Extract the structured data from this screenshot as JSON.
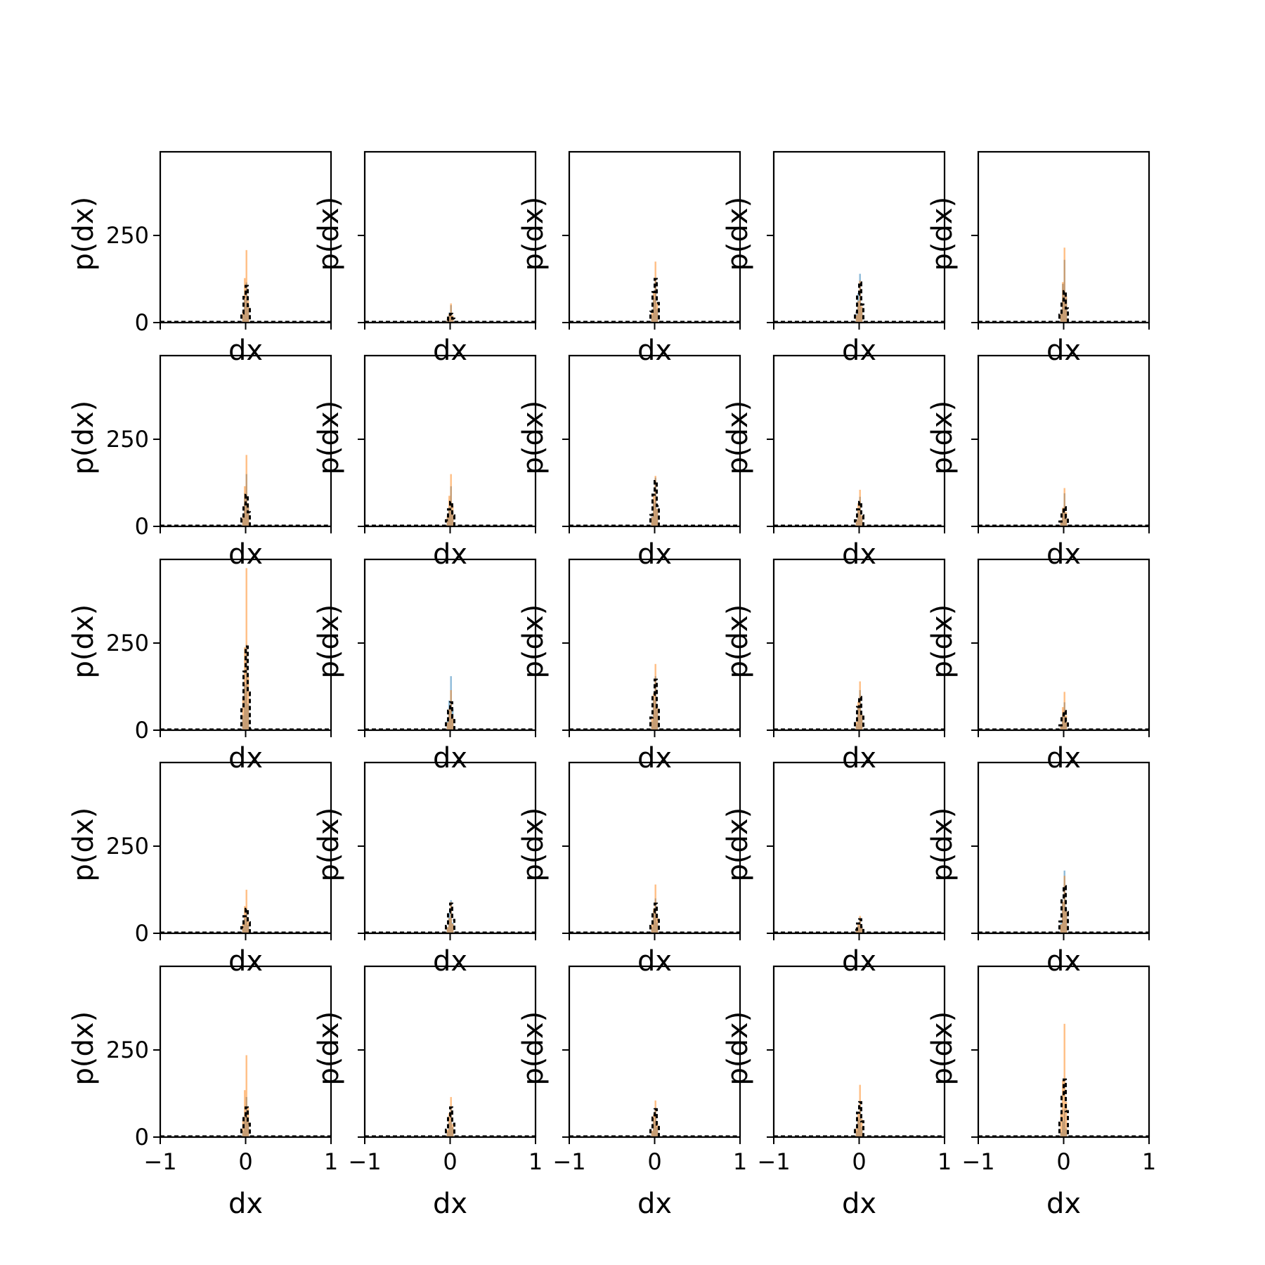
{
  "figure": {
    "rows": 5,
    "cols": 5,
    "colors": {
      "series_a": "#1f77b4",
      "series_b": "#ff7f0e",
      "line": "#000000"
    }
  },
  "chart_data": {
    "type": "bar",
    "layout": "grid-5x5",
    "xlabel": "dx",
    "ylabel": "p(dx)",
    "xlim": [
      -1,
      1
    ],
    "ylim": [
      0,
      490
    ],
    "x_ticks": [
      -1,
      0,
      1
    ],
    "x_tick_labels": [
      "−1",
      "0",
      "1"
    ],
    "y_ticks": [
      0,
      250
    ],
    "y_tick_labels": [
      "0",
      "250"
    ],
    "grid": false,
    "note_on_labels": "y tick labels shown only on first column; x tick labels shown only on bottom row",
    "panels": [
      {
        "row": 0,
        "col": 0,
        "blue_peak": 115,
        "orange_peak": 208,
        "black_peak": 105
      },
      {
        "row": 0,
        "col": 1,
        "blue_peak": 50,
        "orange_peak": 55,
        "black_peak": 25
      },
      {
        "row": 0,
        "col": 2,
        "blue_peak": 120,
        "orange_peak": 175,
        "black_peak": 125
      },
      {
        "row": 0,
        "col": 3,
        "blue_peak": 140,
        "orange_peak": 120,
        "black_peak": 115
      },
      {
        "row": 0,
        "col": 4,
        "blue_peak": 180,
        "orange_peak": 215,
        "black_peak": 90
      },
      {
        "row": 1,
        "col": 0,
        "blue_peak": 150,
        "orange_peak": 205,
        "black_peak": 90
      },
      {
        "row": 1,
        "col": 1,
        "blue_peak": 115,
        "orange_peak": 150,
        "black_peak": 70
      },
      {
        "row": 1,
        "col": 2,
        "blue_peak": 140,
        "orange_peak": 145,
        "black_peak": 130
      },
      {
        "row": 1,
        "col": 3,
        "blue_peak": 85,
        "orange_peak": 105,
        "black_peak": 70
      },
      {
        "row": 1,
        "col": 4,
        "blue_peak": 95,
        "orange_peak": 110,
        "black_peak": 55
      },
      {
        "row": 2,
        "col": 0,
        "blue_peak": 245,
        "orange_peak": 465,
        "black_peak": 240
      },
      {
        "row": 2,
        "col": 1,
        "blue_peak": 155,
        "orange_peak": 115,
        "black_peak": 80
      },
      {
        "row": 2,
        "col": 2,
        "blue_peak": 155,
        "orange_peak": 190,
        "black_peak": 145
      },
      {
        "row": 2,
        "col": 3,
        "blue_peak": 115,
        "orange_peak": 140,
        "black_peak": 95
      },
      {
        "row": 2,
        "col": 4,
        "blue_peak": 80,
        "orange_peak": 110,
        "black_peak": 55
      },
      {
        "row": 3,
        "col": 0,
        "blue_peak": 70,
        "orange_peak": 125,
        "black_peak": 70
      },
      {
        "row": 3,
        "col": 1,
        "blue_peak": 95,
        "orange_peak": 90,
        "black_peak": 85
      },
      {
        "row": 3,
        "col": 2,
        "blue_peak": 100,
        "orange_peak": 140,
        "black_peak": 85
      },
      {
        "row": 3,
        "col": 3,
        "blue_peak": 45,
        "orange_peak": 50,
        "black_peak": 40
      },
      {
        "row": 3,
        "col": 4,
        "blue_peak": 180,
        "orange_peak": 165,
        "black_peak": 135
      },
      {
        "row": 4,
        "col": 0,
        "blue_peak": 115,
        "orange_peak": 235,
        "black_peak": 85
      },
      {
        "row": 4,
        "col": 1,
        "blue_peak": 80,
        "orange_peak": 115,
        "black_peak": 85
      },
      {
        "row": 4,
        "col": 2,
        "blue_peak": 85,
        "orange_peak": 105,
        "black_peak": 80
      },
      {
        "row": 4,
        "col": 3,
        "blue_peak": 90,
        "orange_peak": 150,
        "black_peak": 100
      },
      {
        "row": 4,
        "col": 4,
        "blue_peak": 80,
        "orange_peak": 325,
        "black_peak": 165
      }
    ]
  }
}
